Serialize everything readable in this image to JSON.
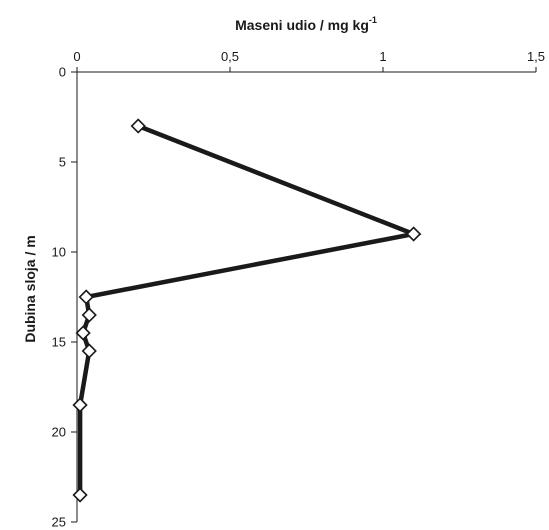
{
  "chart_data": {
    "type": "line",
    "title": "",
    "xlabel": "Maseni udio / mg kg",
    "xlabel_superscript": "-1",
    "ylabel": "Dubina sloja / m",
    "x_axis_position": "top",
    "y_axis_inverted": true,
    "xlim": [
      0,
      1.5
    ],
    "ylim": [
      0,
      25
    ],
    "x_ticks": [
      {
        "value": 0,
        "label": "0"
      },
      {
        "value": 0.5,
        "label": "0,5"
      },
      {
        "value": 1,
        "label": "1"
      },
      {
        "value": 1.5,
        "label": "1,5"
      }
    ],
    "y_ticks": [
      {
        "value": 0,
        "label": "0"
      },
      {
        "value": 5,
        "label": "5"
      },
      {
        "value": 10,
        "label": "10"
      },
      {
        "value": 15,
        "label": "15"
      },
      {
        "value": 20,
        "label": "20"
      },
      {
        "value": 25,
        "label": "25"
      }
    ],
    "grid": false,
    "series": [
      {
        "marker": "diamond",
        "color": "#1a1a1a",
        "points": [
          {
            "x": 0.2,
            "y": 3
          },
          {
            "x": 1.1,
            "y": 9
          },
          {
            "x": 0.03,
            "y": 12.5
          },
          {
            "x": 0.04,
            "y": 13.5
          },
          {
            "x": 0.02,
            "y": 14.5
          },
          {
            "x": 0.04,
            "y": 15.5
          },
          {
            "x": 0.01,
            "y": 18.5
          },
          {
            "x": 0.01,
            "y": 23.5
          }
        ]
      }
    ]
  }
}
